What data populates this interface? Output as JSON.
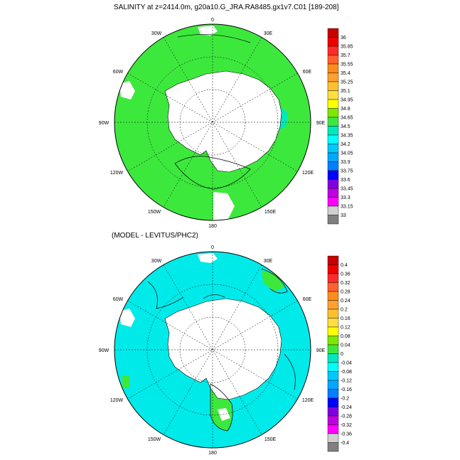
{
  "title_top": "SALINITY at z=2414.0m, g20a10.G_JRA.RA8485.gx1v7.C01 [189-208]",
  "title_bottom": "(MODEL - LEVITUS/PHC2)",
  "longitude_labels": {
    "lon_0": "0",
    "lon_30e": "30E",
    "lon_60e": "60E",
    "lon_90e": "90E",
    "lon_120e": "120E",
    "lon_150e": "150E",
    "lon_180": "180",
    "lon_150w": "150W",
    "lon_120w": "120W",
    "lon_90w": "90W",
    "lon_60w": "60W",
    "lon_30w": "30W"
  },
  "colorbar_top": {
    "levels": [
      "36",
      "35.85",
      "35.7",
      "35.55",
      "35.4",
      "35.25",
      "35.1",
      "34.95",
      "34.8",
      "34.65",
      "34.5",
      "34.35",
      "34.2",
      "34.05",
      "33.9",
      "33.75",
      "33.6",
      "33.45",
      "33.3",
      "33.15",
      "33"
    ],
    "colors": [
      "#c80000",
      "#ee0000",
      "#ff2a2a",
      "#ff6030",
      "#ff8c1a",
      "#ffa030",
      "#ffc030",
      "#ffe040",
      "#ffff00",
      "#7ee800",
      "#3de83d",
      "#00e8c0",
      "#00ffff",
      "#00c8ff",
      "#00a8ff",
      "#0080ff",
      "#0000ff",
      "#8000e0",
      "#c000e0",
      "#ff00ff",
      "#d0d0d0",
      "#808080"
    ]
  },
  "colorbar_bottom": {
    "levels": [
      "0.4",
      "0.36",
      "0.32",
      "0.28",
      "0.24",
      "0.2",
      "0.16",
      "0.12",
      "0.08",
      "0.04",
      "0",
      "-0.04",
      "-0.08",
      "-0.12",
      "-0.16",
      "-0.2",
      "-0.24",
      "-0.28",
      "-0.32",
      "-0.36",
      "-0.4"
    ],
    "colors": [
      "#c80000",
      "#ee0000",
      "#ff2a2a",
      "#ff6030",
      "#ff8c1a",
      "#ffa030",
      "#ffc030",
      "#ffe040",
      "#ffff00",
      "#7ee800",
      "#3de83d",
      "#00e8c0",
      "#00ffff",
      "#00c8ff",
      "#00a8ff",
      "#0080ff",
      "#0000ff",
      "#8000e0",
      "#c000e0",
      "#ff00ff",
      "#d0d0d0",
      "#808080"
    ]
  },
  "colors": {
    "top_field": "#3de83d",
    "bottom_field": "#00eaea",
    "bottom_patch": "#3de83d",
    "land": "#ffffff"
  }
}
